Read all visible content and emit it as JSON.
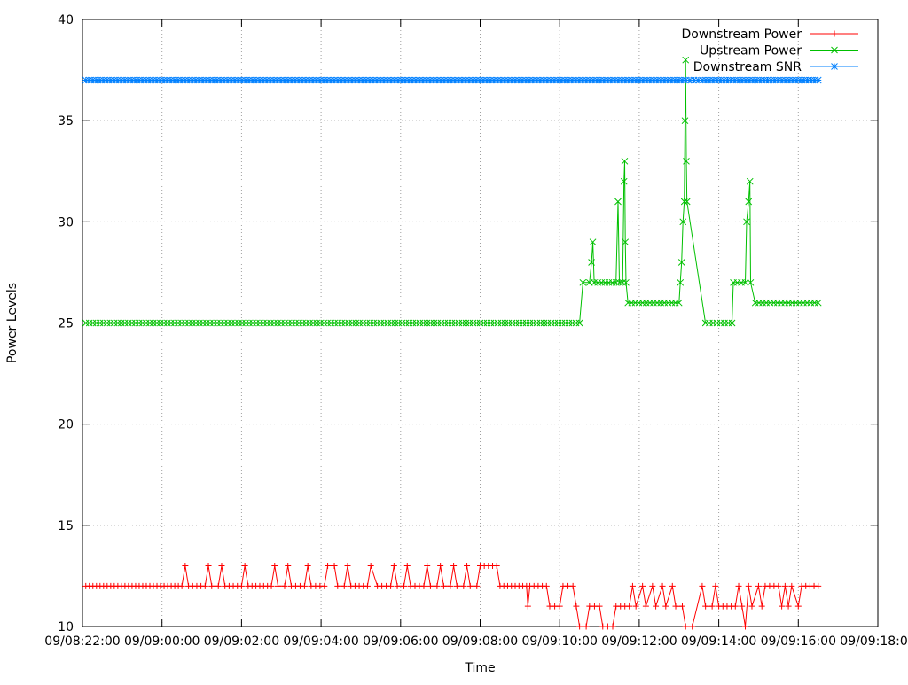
{
  "chart_data": {
    "type": "line",
    "xlabel": "Time",
    "ylabel": "Power Levels",
    "ylim": [
      10,
      40
    ],
    "xlim": [
      "09/08:22:00",
      "09/09:18:00"
    ],
    "xticks": [
      "09/08:22:00",
      "09/09:00:00",
      "09/09:02:00",
      "09/09:04:00",
      "09/09:06:00",
      "09/09:08:00",
      "09/09:10:00",
      "09/09:12:00",
      "09/09:14:00",
      "09/09:16:00",
      "09/09:18:00"
    ],
    "yticks": [
      "10",
      "15",
      "20",
      "25",
      "30",
      "35",
      "40"
    ],
    "grid": true,
    "legend_position": "top-right",
    "series": [
      {
        "name": "Downstream Power",
        "color": "#ff0000",
        "marker": "plus",
        "points": [
          [
            "09/08:22:05",
            12
          ],
          [
            "09/09:00:30",
            12
          ],
          [
            "09/09:00:35",
            13
          ],
          [
            "09/09:00:40",
            12
          ],
          [
            "09/09:01:05",
            12
          ],
          [
            "09/09:01:10",
            13
          ],
          [
            "09/09:01:15",
            12
          ],
          [
            "09/09:01:25",
            12
          ],
          [
            "09/09:01:30",
            13
          ],
          [
            "09/09:01:35",
            12
          ],
          [
            "09/09:02:00",
            12
          ],
          [
            "09/09:02:05",
            13
          ],
          [
            "09/09:02:10",
            12
          ],
          [
            "09/09:02:45",
            12
          ],
          [
            "09/09:02:50",
            13
          ],
          [
            "09/09:02:55",
            12
          ],
          [
            "09/09:03:05",
            12
          ],
          [
            "09/09:03:10",
            13
          ],
          [
            "09/09:03:15",
            12
          ],
          [
            "09/09:03:35",
            12
          ],
          [
            "09/09:03:40",
            13
          ],
          [
            "09/09:03:45",
            12
          ],
          [
            "09/09:04:05",
            12
          ],
          [
            "09/09:04:10",
            13
          ],
          [
            "09/09:04:20",
            13
          ],
          [
            "09/09:04:25",
            12
          ],
          [
            "09/09:04:35",
            12
          ],
          [
            "09/09:04:40",
            13
          ],
          [
            "09/09:04:45",
            12
          ],
          [
            "09/09:05:10",
            12
          ],
          [
            "09/09:05:15",
            13
          ],
          [
            "09/09:05:25",
            12
          ],
          [
            "09/09:05:45",
            12
          ],
          [
            "09/09:05:50",
            13
          ],
          [
            "09/09:05:55",
            12
          ],
          [
            "09/09:06:05",
            12
          ],
          [
            "09/09:06:10",
            13
          ],
          [
            "09/09:06:15",
            12
          ],
          [
            "09/09:06:35",
            12
          ],
          [
            "09/09:06:40",
            13
          ],
          [
            "09/09:06:45",
            12
          ],
          [
            "09/09:06:55",
            12
          ],
          [
            "09/09:07:00",
            13
          ],
          [
            "09/09:07:05",
            12
          ],
          [
            "09/09:07:15",
            12
          ],
          [
            "09/09:07:20",
            13
          ],
          [
            "09/09:07:25",
            12
          ],
          [
            "09/09:07:35",
            12
          ],
          [
            "09/09:07:40",
            13
          ],
          [
            "09/09:07:45",
            12
          ],
          [
            "09/09:07:55",
            12
          ],
          [
            "09/09:08:00",
            13
          ],
          [
            "09/09:08:25",
            13
          ],
          [
            "09/09:08:30",
            12
          ],
          [
            "09/09:09:10",
            12
          ],
          [
            "09/09:09:12",
            11
          ],
          [
            "09/09:09:15",
            12
          ],
          [
            "09/09:09:40",
            12
          ],
          [
            "09/09:09:45",
            11
          ],
          [
            "09/09:10:00",
            11
          ],
          [
            "09/09:10:05",
            12
          ],
          [
            "09/09:10:20",
            12
          ],
          [
            "09/09:10:25",
            11
          ],
          [
            "09/09:10:30",
            10
          ],
          [
            "09/09:10:40",
            10
          ],
          [
            "09/09:10:45",
            11
          ],
          [
            "09/09:11:00",
            11
          ],
          [
            "09/09:11:05",
            10
          ],
          [
            "09/09:11:20",
            10
          ],
          [
            "09/09:11:25",
            11
          ],
          [
            "09/09:11:45",
            11
          ],
          [
            "09/09:11:50",
            12
          ],
          [
            "09/09:11:55",
            11
          ],
          [
            "09/09:12:05",
            12
          ],
          [
            "09/09:12:10",
            11
          ],
          [
            "09/09:12:20",
            12
          ],
          [
            "09/09:12:25",
            11
          ],
          [
            "09/09:12:35",
            12
          ],
          [
            "09/09:12:40",
            11
          ],
          [
            "09/09:12:50",
            12
          ],
          [
            "09/09:12:55",
            11
          ],
          [
            "09/09:13:05",
            11
          ],
          [
            "09/09:13:10",
            10
          ],
          [
            "09/09:13:20",
            10
          ],
          [
            "09/09:13:35",
            12
          ],
          [
            "09/09:13:40",
            11
          ],
          [
            "09/09:13:50",
            11
          ],
          [
            "09/09:13:55",
            12
          ],
          [
            "09/09:14:00",
            11
          ],
          [
            "09/09:14:25",
            11
          ],
          [
            "09/09:14:30",
            12
          ],
          [
            "09/09:14:35",
            11
          ],
          [
            "09/09:14:40",
            10
          ],
          [
            "09/09:14:45",
            12
          ],
          [
            "09/09:14:50",
            11
          ],
          [
            "09/09:15:00",
            12
          ],
          [
            "09/09:15:05",
            11
          ],
          [
            "09/09:15:10",
            12
          ],
          [
            "09/09:15:30",
            12
          ],
          [
            "09/09:15:35",
            11
          ],
          [
            "09/09:15:40",
            12
          ],
          [
            "09/09:15:45",
            11
          ],
          [
            "09/09:15:50",
            12
          ],
          [
            "09/09:16:00",
            11
          ],
          [
            "09/09:16:05",
            12
          ],
          [
            "09/09:16:30",
            12
          ]
        ]
      },
      {
        "name": "Upstream Power",
        "color": "#00c000",
        "marker": "cross",
        "points": [
          [
            "09/08:22:05",
            25
          ],
          [
            "09/09:10:30",
            25
          ],
          [
            "09/09:10:35",
            27
          ],
          [
            "09/09:10:45",
            27
          ],
          [
            "09/09:10:48",
            28
          ],
          [
            "09/09:10:50",
            29
          ],
          [
            "09/09:10:52",
            27
          ],
          [
            "09/09:11:25",
            27
          ],
          [
            "09/09:11:28",
            31
          ],
          [
            "09/09:11:30",
            27
          ],
          [
            "09/09:11:35",
            27
          ],
          [
            "09/09:11:37",
            32
          ],
          [
            "09/09:11:38",
            33
          ],
          [
            "09/09:11:39",
            29
          ],
          [
            "09/09:11:40",
            27
          ],
          [
            "09/09:11:43",
            26
          ],
          [
            "09/09:13:00",
            26
          ],
          [
            "09/09:13:02",
            27
          ],
          [
            "09/09:13:04",
            28
          ],
          [
            "09/09:13:06",
            30
          ],
          [
            "09/09:13:08",
            31
          ],
          [
            "09/09:13:09",
            35
          ],
          [
            "09/09:13:10",
            38
          ],
          [
            "09/09:13:11",
            33
          ],
          [
            "09/09:13:12",
            31
          ],
          [
            "09/09:13:40",
            25
          ],
          [
            "09/09:14:20",
            25
          ],
          [
            "09/09:14:22",
            27
          ],
          [
            "09/09:14:40",
            27
          ],
          [
            "09/09:14:42",
            30
          ],
          [
            "09/09:14:45",
            31
          ],
          [
            "09/09:14:47",
            32
          ],
          [
            "09/09:14:48",
            27
          ],
          [
            "09/09:14:55",
            26
          ],
          [
            "09/09:16:30",
            26
          ]
        ]
      },
      {
        "name": "Downstream SNR",
        "color": "#0080ff",
        "marker": "star",
        "points": [
          [
            "09/08:22:05",
            37
          ],
          [
            "09/09:13:10",
            37
          ],
          [
            "09/09:13:35",
            37
          ],
          [
            "09/09:16:30",
            37
          ]
        ]
      }
    ]
  }
}
